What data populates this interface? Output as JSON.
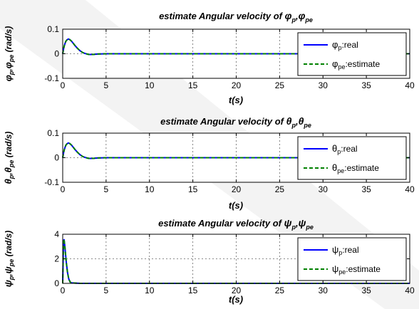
{
  "colors": {
    "real": "#0000ff",
    "estimate": "#008000",
    "grid": "#666666",
    "watermark": "#f0f0f0"
  },
  "chart_data": [
    {
      "type": "line",
      "title": {
        "main": "estimate Angular velocity of ",
        "sym": "φ",
        "sub1": "p",
        "sub2": "pe"
      },
      "ylabel": {
        "sym": "φ",
        "sub1": "p",
        "sub2": "pe",
        "unit": " (rad/s)"
      },
      "xlabel": "t(s)",
      "xlim": [
        0,
        40
      ],
      "ylim": [
        -0.1,
        0.1
      ],
      "xticks": [
        0,
        5,
        10,
        15,
        20,
        25,
        30,
        35,
        40
      ],
      "xticklabels": [
        "0",
        "5",
        "10",
        "15",
        "20",
        "25",
        "30",
        "35",
        "40"
      ],
      "yticks": [
        -0.1,
        0,
        0.1
      ],
      "yticklabels": [
        "-0.1",
        "0",
        "0.1"
      ],
      "grid": true,
      "legend": "right",
      "series": [
        {
          "name": {
            "sym": "φ",
            "sub": "p",
            "suffix": ":real"
          },
          "style": "solid",
          "color": "#0000ff",
          "x": [
            0,
            0.1,
            0.2,
            0.35,
            0.5,
            0.65,
            0.8,
            1.0,
            1.2,
            1.45,
            1.7,
            2.0,
            2.3,
            2.6,
            3.0,
            3.5,
            4.0,
            5,
            10,
            20,
            30,
            40
          ],
          "y": [
            0,
            0.02,
            0.035,
            0.05,
            0.057,
            0.06,
            0.058,
            0.052,
            0.043,
            0.032,
            0.022,
            0.012,
            0.005,
            0.001,
            -0.003,
            -0.003,
            -0.001,
            0,
            0,
            0,
            0,
            0
          ]
        },
        {
          "name": {
            "sym": "φ",
            "sub": "pe",
            "suffix": ":estimate"
          },
          "style": "dashed",
          "color": "#008000",
          "x": [
            0,
            0.1,
            0.2,
            0.35,
            0.5,
            0.65,
            0.8,
            1.0,
            1.2,
            1.45,
            1.7,
            2.0,
            2.3,
            2.6,
            3.0,
            3.5,
            4.0,
            5,
            10,
            20,
            30,
            40
          ],
          "y": [
            0,
            0.02,
            0.035,
            0.05,
            0.057,
            0.06,
            0.058,
            0.052,
            0.043,
            0.032,
            0.022,
            0.012,
            0.005,
            0.001,
            -0.003,
            -0.003,
            -0.001,
            0,
            0,
            0,
            0,
            0
          ]
        }
      ]
    },
    {
      "type": "line",
      "title": {
        "main": "estimate Angular velocity of ",
        "sym": "θ",
        "sub1": "p",
        "sub2": "pe"
      },
      "ylabel": {
        "sym": "θ",
        "sub1": "p",
        "sub2": "pe",
        "unit": " (rad/s)"
      },
      "xlabel": "t(s)",
      "xlim": [
        0,
        40
      ],
      "ylim": [
        -0.1,
        0.1
      ],
      "xticks": [
        0,
        5,
        10,
        15,
        20,
        25,
        30,
        35,
        40
      ],
      "xticklabels": [
        "0",
        "5",
        "10",
        "15",
        "20",
        "25",
        "30",
        "35",
        "40"
      ],
      "yticks": [
        -0.1,
        0,
        0.1
      ],
      "yticklabels": [
        "-0.1",
        "0",
        "0.1"
      ],
      "grid": true,
      "legend": "right",
      "series": [
        {
          "name": {
            "sym": "θ",
            "sub": "p",
            "suffix": ":real"
          },
          "style": "solid",
          "color": "#0000ff",
          "x": [
            0,
            0.1,
            0.2,
            0.35,
            0.5,
            0.65,
            0.8,
            1.0,
            1.2,
            1.45,
            1.7,
            2.0,
            2.3,
            2.6,
            3.0,
            3.5,
            4.0,
            5,
            10,
            20,
            30,
            40
          ],
          "y": [
            0,
            0.02,
            0.035,
            0.05,
            0.057,
            0.06,
            0.058,
            0.052,
            0.043,
            0.032,
            0.022,
            0.012,
            0.005,
            0.001,
            -0.003,
            -0.003,
            -0.001,
            0,
            0,
            0,
            0,
            0
          ]
        },
        {
          "name": {
            "sym": "θ",
            "sub": "pe",
            "suffix": ":estimate"
          },
          "style": "dashed",
          "color": "#008000",
          "x": [
            0,
            0.1,
            0.2,
            0.35,
            0.5,
            0.65,
            0.8,
            1.0,
            1.2,
            1.45,
            1.7,
            2.0,
            2.3,
            2.6,
            3.0,
            3.5,
            4.0,
            5,
            10,
            20,
            30,
            40
          ],
          "y": [
            0,
            0.02,
            0.035,
            0.05,
            0.057,
            0.06,
            0.058,
            0.052,
            0.043,
            0.032,
            0.022,
            0.012,
            0.005,
            0.001,
            -0.003,
            -0.003,
            -0.001,
            0,
            0,
            0,
            0,
            0
          ]
        }
      ]
    },
    {
      "type": "line",
      "title": {
        "main": "estimate Angular velocity of ",
        "sym": "ψ",
        "sub1": "p",
        "sub2": "pe"
      },
      "ylabel": {
        "sym": "ψ",
        "sub1": "p",
        "sub2": "pe",
        "unit": " (rad/s)"
      },
      "xlabel": "t(s)",
      "xlim": [
        0,
        40
      ],
      "ylim": [
        0,
        4
      ],
      "xticks": [
        0,
        5,
        10,
        15,
        20,
        25,
        30,
        35,
        40
      ],
      "xticklabels": [
        "0",
        "5",
        "10",
        "15",
        "20",
        "25",
        "30",
        "35",
        "40"
      ],
      "yticks": [
        0,
        2,
        4
      ],
      "yticklabels": [
        "0",
        "2",
        "4"
      ],
      "grid": true,
      "legend": "right",
      "series": [
        {
          "name": {
            "sym": "ψ",
            "sub": "p",
            "suffix": ":real"
          },
          "style": "solid",
          "color": "#0000ff",
          "x": [
            0,
            0.08,
            0.15,
            0.25,
            0.4,
            0.55,
            0.7,
            0.85,
            1.0,
            2,
            10,
            20,
            30,
            40
          ],
          "y": [
            0,
            3.0,
            3.6,
            3.0,
            1.8,
            0.9,
            0.35,
            0.12,
            0.04,
            0,
            0,
            0,
            0,
            0
          ]
        },
        {
          "name": {
            "sym": "ψ",
            "sub": "pe",
            "suffix": ":estimate"
          },
          "style": "dashed",
          "color": "#008000",
          "x": [
            0,
            0.08,
            0.15,
            0.25,
            0.4,
            0.55,
            0.7,
            0.85,
            1.0,
            2,
            10,
            20,
            30,
            40
          ],
          "y": [
            0,
            3.0,
            3.6,
            3.0,
            1.8,
            0.9,
            0.35,
            0.12,
            0.04,
            0,
            0,
            0,
            0,
            0
          ]
        }
      ]
    }
  ]
}
